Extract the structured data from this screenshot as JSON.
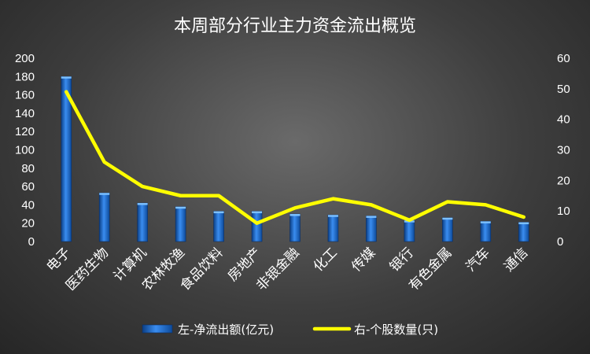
{
  "chart_data": {
    "type": "bar+line",
    "title": "本周部分行业主力资金流出概览",
    "categories": [
      "电子",
      "医药生物",
      "计算机",
      "农林牧渔",
      "食品饮料",
      "房地产",
      "非银金融",
      "化工",
      "传媒",
      "银行",
      "有色金属",
      "汽车",
      "通信"
    ],
    "series": [
      {
        "name": "左-净流出额(亿元)",
        "type": "bar",
        "axis": "left",
        "color": "#1f6fd1",
        "values": [
          180,
          53,
          42,
          38,
          33,
          33,
          30,
          29,
          28,
          23,
          26,
          22,
          21
        ]
      },
      {
        "name": "右-个股数量(只)",
        "type": "line",
        "axis": "right",
        "color": "#ffff00",
        "values": [
          49,
          26,
          18,
          15,
          15,
          6,
          11,
          14,
          12,
          7,
          13,
          12,
          8
        ]
      }
    ],
    "ylim_left": [
      0,
      200
    ],
    "yticks_left": [
      0,
      20,
      40,
      60,
      80,
      100,
      120,
      140,
      160,
      180,
      200
    ],
    "ylim_right": [
      0,
      60
    ],
    "yticks_right": [
      0,
      10,
      20,
      30,
      40,
      50,
      60
    ],
    "legend": "bottom",
    "grid": false
  }
}
